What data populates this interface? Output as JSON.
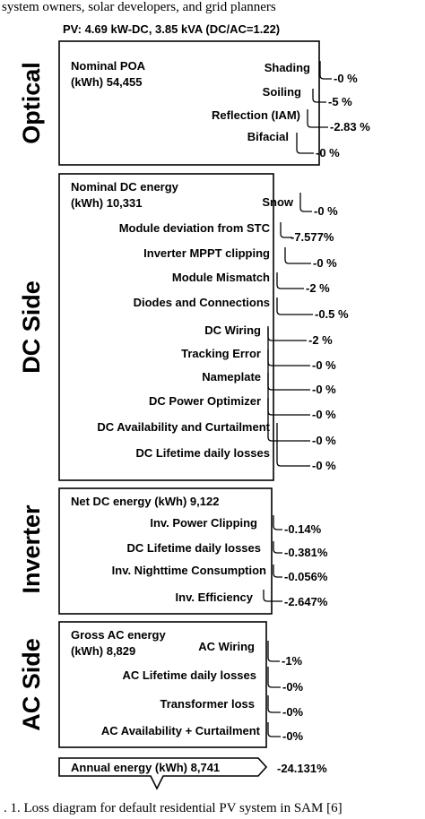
{
  "header_caption": "system owners, solar developers, and grid planners",
  "system_label": "PV: 4.69 kW-DC, 3.85 kVA (DC/AC=1.22)",
  "sections": {
    "optical": {
      "title": "Optical",
      "head_line1": "Nominal POA",
      "head_line2": "(kWh) 54,455",
      "losses": [
        {
          "label": "Shading",
          "value": "-0 %"
        },
        {
          "label": "Soiling",
          "value": "-5 %"
        },
        {
          "label": "Reflection (IAM)",
          "value": "-2.83 %"
        },
        {
          "label": "Bifacial",
          "value": "-0 %"
        }
      ]
    },
    "dc": {
      "title": "DC Side",
      "head_line1": "Nominal DC energy",
      "head_line2": "(kWh) 10,331",
      "losses": [
        {
          "label": "Snow",
          "value": "-0 %"
        },
        {
          "label": "Module deviation from STC",
          "value": "-7.577%"
        },
        {
          "label": "Inverter MPPT clipping",
          "value": "-0 %"
        },
        {
          "label": "Module Mismatch",
          "value": "-2 %"
        },
        {
          "label": "Diodes and Connections",
          "value": "-0.5 %"
        },
        {
          "label": "DC Wiring",
          "value": "-2 %"
        },
        {
          "label": "Tracking Error",
          "value": "-0 %"
        },
        {
          "label": "Nameplate",
          "value": "-0 %"
        },
        {
          "label": "DC Power Optimizer",
          "value": "-0 %"
        },
        {
          "label": "DC Availability and Curtailment",
          "value": "-0 %"
        },
        {
          "label": "DC Lifetime daily losses",
          "value": "-0 %"
        }
      ]
    },
    "inverter": {
      "title": "Inverter",
      "head_line1": "Net DC energy (kWh) 9,122",
      "losses": [
        {
          "label": "Inv. Power Clipping",
          "value": "-0.14%"
        },
        {
          "label": "DC Lifetime daily losses",
          "value": "-0.381%"
        },
        {
          "label": "Inv. Nighttime Consumption",
          "value": "-0.056%"
        },
        {
          "label": "Inv. Efficiency",
          "value": "-2.647%"
        }
      ]
    },
    "ac": {
      "title": "AC Side",
      "head_line1": "Gross AC energy",
      "head_line2": "(kWh) 8,829",
      "losses": [
        {
          "label": "AC Wiring",
          "value": "-1%"
        },
        {
          "label": "AC Lifetime daily losses",
          "value": "-0%"
        },
        {
          "label": "Transformer loss",
          "value": "-0%"
        },
        {
          "label": "AC Availability + Curtailment",
          "value": "-0%"
        }
      ]
    }
  },
  "annual": {
    "label": "Annual energy (kWh) 8,741",
    "total": "-24.131%"
  },
  "figure_caption": ". 1. Loss diagram for default residential PV system in SAM [6]"
}
